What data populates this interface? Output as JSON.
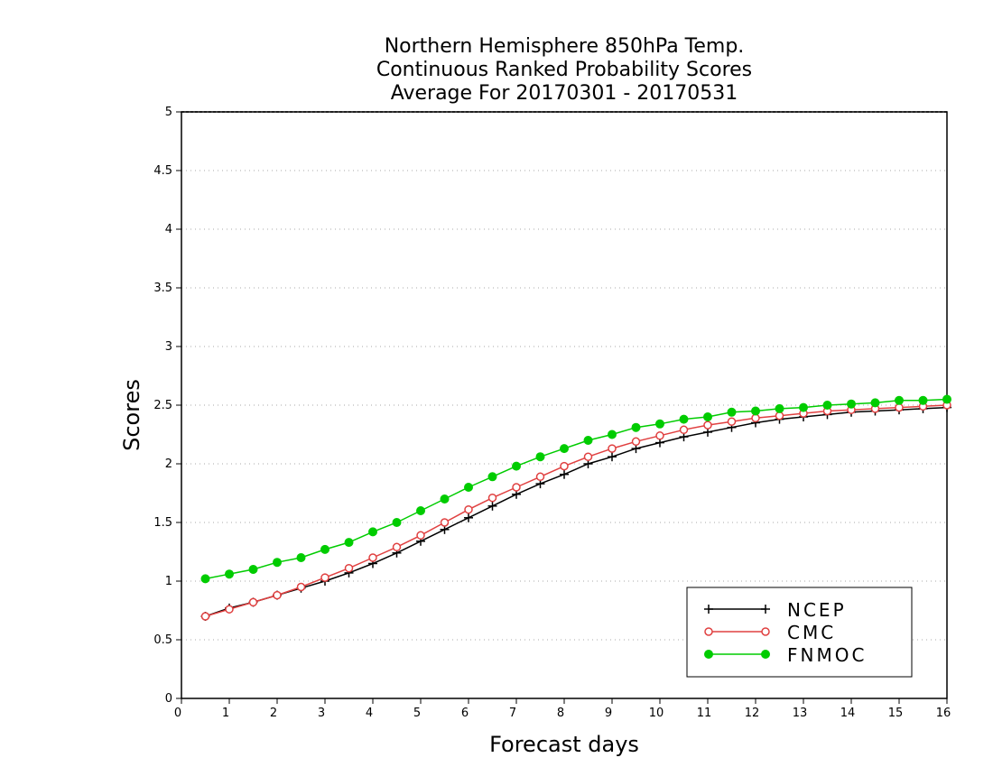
{
  "chart_data": {
    "type": "line",
    "title": [
      "Northern Hemisphere 850hPa Temp.",
      "Continuous Ranked Probability Scores",
      "Average For 20170301 - 20170531"
    ],
    "xlabel": "Forecast days",
    "ylabel": "Scores",
    "xlim": [
      0,
      16
    ],
    "ylim": [
      0,
      5
    ],
    "xticks": [
      "0",
      "1",
      "2",
      "3",
      "4",
      "5",
      "6",
      "7",
      "8",
      "9",
      "10",
      "11",
      "12",
      "13",
      "14",
      "15",
      "16"
    ],
    "yticks": [
      "0",
      "0.5",
      "1",
      "1.5",
      "2",
      "2.5",
      "3",
      "3.5",
      "4",
      "4.5",
      "5"
    ],
    "grid": true,
    "legend_position": "bottom-right",
    "x": [
      0.5,
      1,
      1.5,
      2,
      2.5,
      3,
      3.5,
      4,
      4.5,
      5,
      5.5,
      6,
      6.5,
      7,
      7.5,
      8,
      8.5,
      9,
      9.5,
      10,
      10.5,
      11,
      11.5,
      12,
      12.5,
      13,
      13.5,
      14,
      14.5,
      15,
      15.5,
      16
    ],
    "series": [
      {
        "name": "NCEP",
        "color": "#000000",
        "marker": "plus",
        "values": [
          0.7,
          0.77,
          0.82,
          0.88,
          0.94,
          1.0,
          1.07,
          1.15,
          1.24,
          1.34,
          1.44,
          1.54,
          1.64,
          1.74,
          1.83,
          1.91,
          2.0,
          2.06,
          2.13,
          2.18,
          2.23,
          2.27,
          2.31,
          2.35,
          2.38,
          2.4,
          2.42,
          2.44,
          2.45,
          2.46,
          2.47,
          2.48
        ]
      },
      {
        "name": "CMC",
        "color": "#e04040",
        "marker": "open-circle",
        "values": [
          0.7,
          0.76,
          0.82,
          0.88,
          0.95,
          1.03,
          1.11,
          1.2,
          1.29,
          1.39,
          1.5,
          1.61,
          1.71,
          1.8,
          1.89,
          1.98,
          2.06,
          2.13,
          2.19,
          2.24,
          2.29,
          2.33,
          2.36,
          2.39,
          2.41,
          2.43,
          2.45,
          2.46,
          2.47,
          2.48,
          2.49,
          2.5
        ]
      },
      {
        "name": "FNMOC",
        "color": "#00cc00",
        "marker": "filled-circle",
        "values": [
          1.02,
          1.06,
          1.1,
          1.16,
          1.2,
          1.27,
          1.33,
          1.42,
          1.5,
          1.6,
          1.7,
          1.8,
          1.89,
          1.98,
          2.06,
          2.13,
          2.2,
          2.25,
          2.31,
          2.34,
          2.38,
          2.4,
          2.44,
          2.45,
          2.47,
          2.48,
          2.5,
          2.51,
          2.52,
          2.54,
          2.54,
          2.55
        ]
      }
    ]
  }
}
